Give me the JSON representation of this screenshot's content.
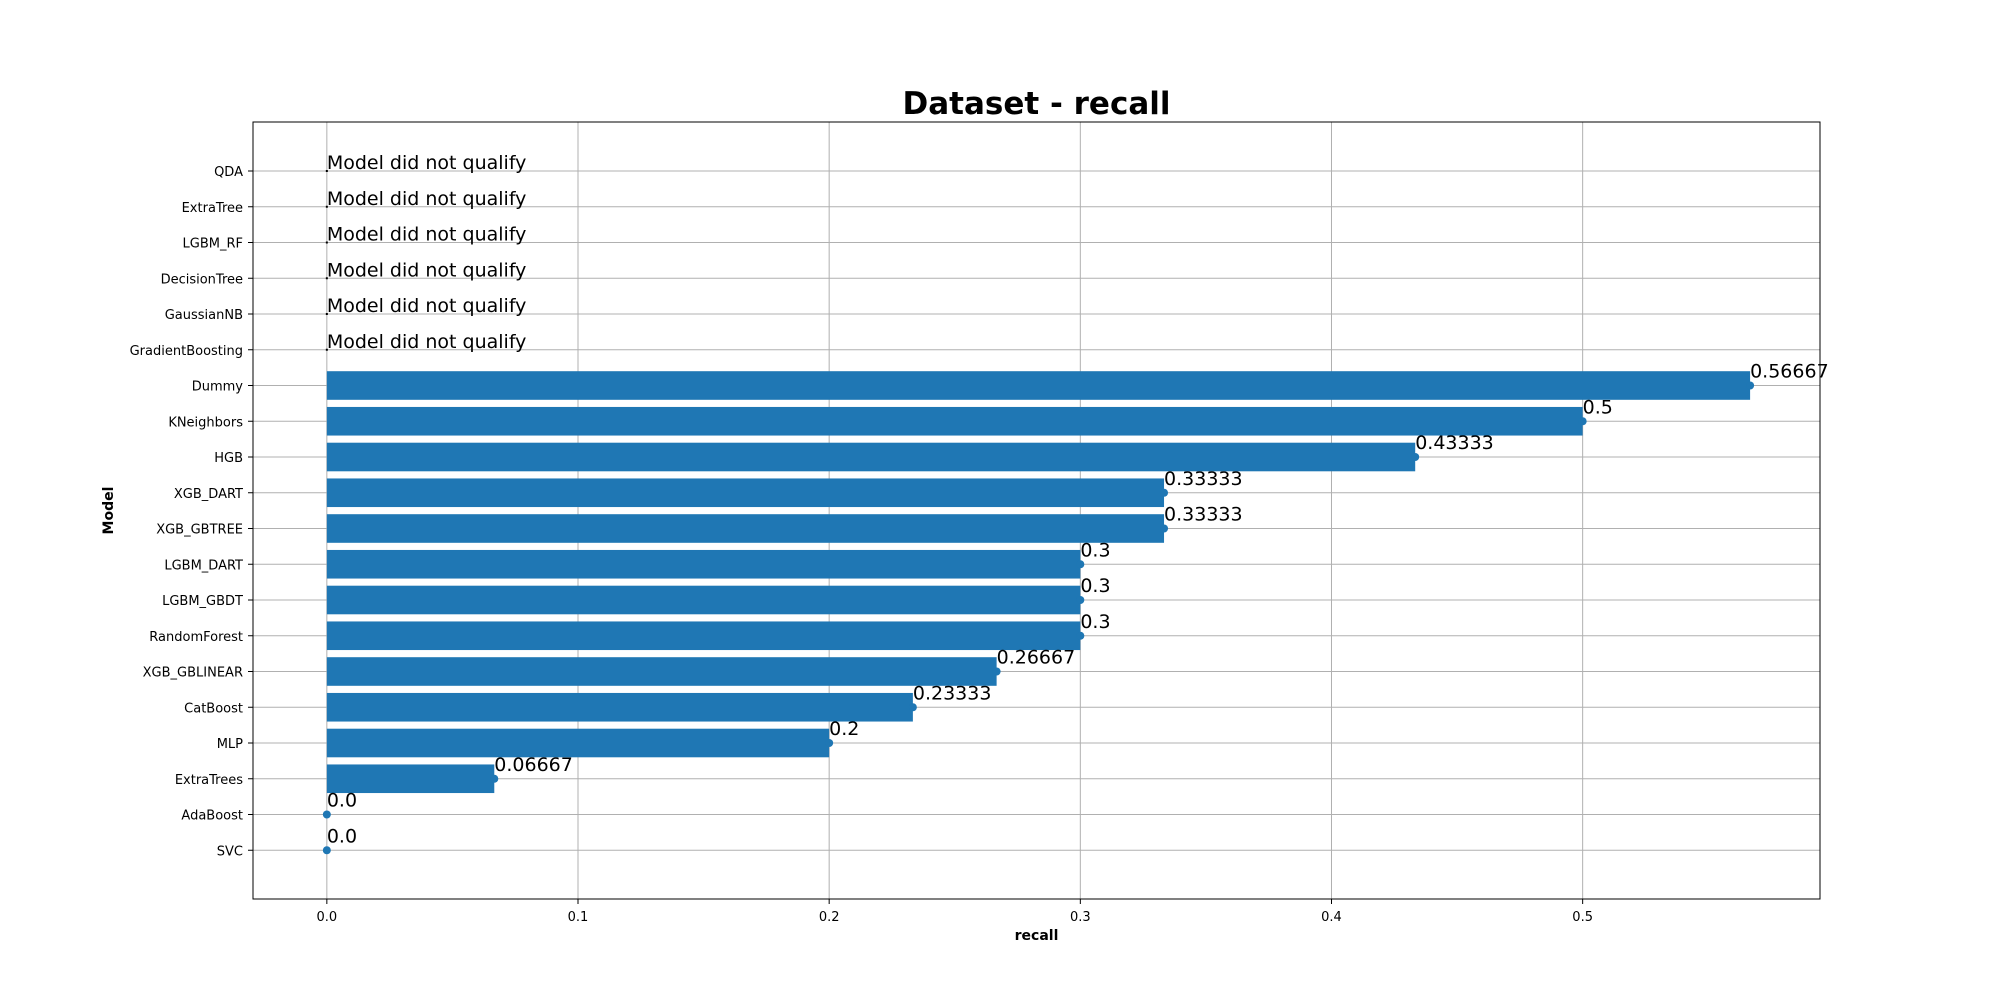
{
  "chart_data": {
    "type": "bar",
    "orientation": "horizontal",
    "title": "Dataset - recall",
    "xlabel": "recall",
    "ylabel": "Model",
    "xlim": [
      -0.0294,
      0.5945
    ],
    "xticks": [
      "0.0",
      "0.1",
      "0.2",
      "0.3",
      "0.4",
      "0.5"
    ],
    "grid": true,
    "bar_color": "#1f77b4",
    "categories": [
      "QDA",
      "ExtraTree",
      "LGBM_RF",
      "DecisionTree",
      "GaussianNB",
      "GradientBoosting",
      "Dummy",
      "KNeighbors",
      "HGB",
      "XGB_DART",
      "XGB_GBTREE",
      "LGBM_DART",
      "LGBM_GBDT",
      "RandomForest",
      "XGB_GBLINEAR",
      "CatBoost",
      "MLP",
      "ExtraTrees",
      "AdaBoost",
      "SVC"
    ],
    "values": [
      null,
      null,
      null,
      null,
      null,
      null,
      0.56667,
      0.5,
      0.43333,
      0.33333,
      0.33333,
      0.3,
      0.3,
      0.3,
      0.26667,
      0.23333,
      0.2,
      0.06667,
      0.0,
      0.0
    ],
    "labels": [
      "Model did not qualify",
      "Model did not qualify",
      "Model did not qualify",
      "Model did not qualify",
      "Model did not qualify",
      "Model did not qualify",
      "0.56667",
      "0.5",
      "0.43333",
      "0.33333",
      "0.33333",
      "0.3",
      "0.3",
      "0.3",
      "0.26667",
      "0.23333",
      "0.2",
      "0.06667",
      "0.0",
      "0.0"
    ]
  }
}
